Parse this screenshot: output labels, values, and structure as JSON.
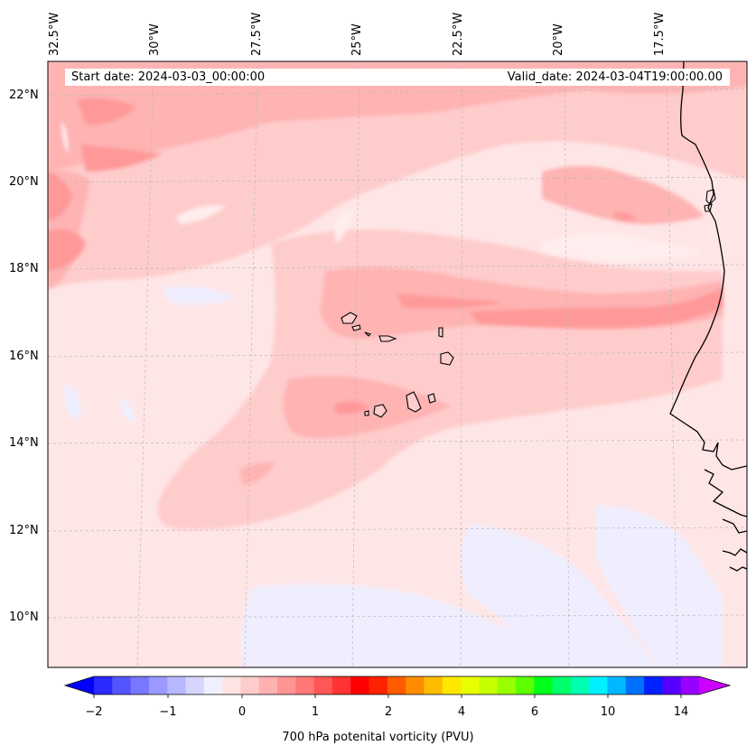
{
  "map": {
    "start_label": "Start date: 2024-03-03_00:00:00",
    "valid_label": "Valid_date: 2024-03-04T19:00:00.00",
    "lon_labels": [
      "32.5°W",
      "30°W",
      "27.5°W",
      "25°W",
      "22.5°W",
      "20°W",
      "17.5°W"
    ],
    "lat_labels": [
      "22°N",
      "20°N",
      "18°N",
      "16°N",
      "14°N",
      "12°N",
      "10°N"
    ],
    "extent": {
      "lon_min": -33,
      "lon_max": -15.8,
      "lat_min": 8.9,
      "lat_max": 22.8
    }
  },
  "colorbar": {
    "title": "700 hPa potenital vorticity (PVU)",
    "tick_labels": [
      "−2",
      "−1",
      "0",
      "1",
      "2",
      "4",
      "6",
      "10",
      "14"
    ],
    "colors": [
      "#0000ff",
      "#2a2aff",
      "#5555ff",
      "#7777ff",
      "#9999ff",
      "#b7b7ff",
      "#d5d5ff",
      "#efefff",
      "#ffe4e4",
      "#ffcccc",
      "#ffb1b1",
      "#ff9494",
      "#ff7777",
      "#ff5757",
      "#ff3333",
      "#ff0000",
      "#ff2200",
      "#ff5c00",
      "#ff8c00",
      "#ffbb00",
      "#ffe800",
      "#e8ff00",
      "#c5ff00",
      "#99ff00",
      "#5cff00",
      "#00ff1a",
      "#00ff6a",
      "#00ffb1",
      "#00f0ff",
      "#00b8ff",
      "#0070ff",
      "#0022ff",
      "#5500ff",
      "#9a00ff",
      "#cc00ff"
    ],
    "extend": "both"
  }
}
